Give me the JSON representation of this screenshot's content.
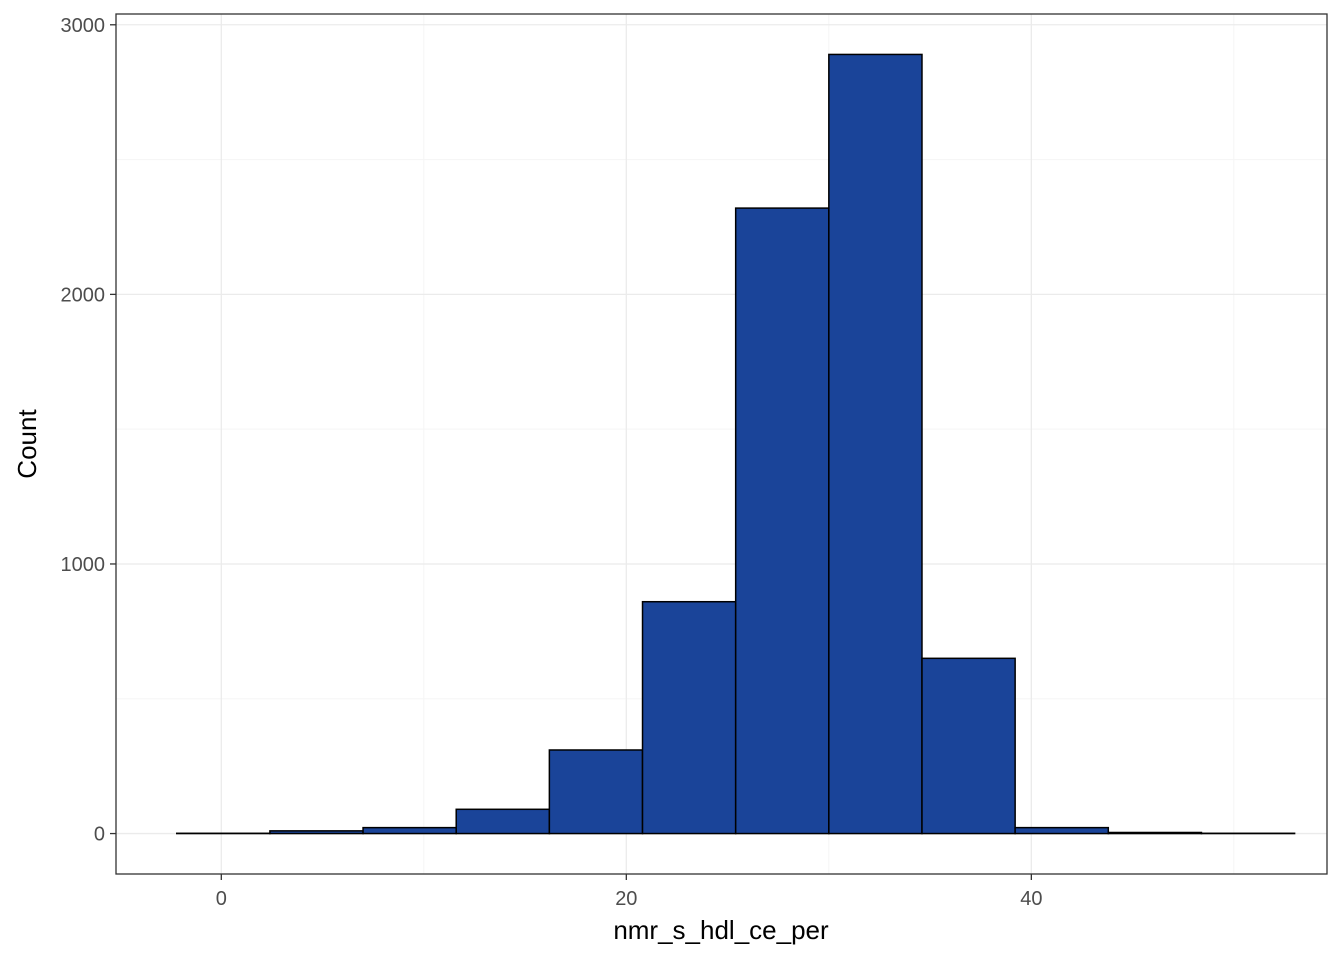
{
  "chart_data": {
    "type": "bar",
    "subtype": "histogram",
    "title": "",
    "xlabel": "nmr_s_hdl_ce_per",
    "ylabel": "Count",
    "xlim": [
      -5.2,
      54.6
    ],
    "ylim": [
      -150,
      3040
    ],
    "x_ticks": [
      0,
      20,
      40
    ],
    "y_ticks": [
      0,
      1000,
      2000,
      3000
    ],
    "x_tick_labels": [
      "0",
      "20",
      "40"
    ],
    "y_tick_labels": [
      "0",
      "1000",
      "2000",
      "3000"
    ],
    "grid": true,
    "bin_edges": [
      -2.2,
      2.4,
      7.0,
      11.6,
      16.2,
      20.8,
      25.4,
      30.0,
      34.6,
      39.2,
      43.8,
      48.4,
      53.0
    ],
    "values": [
      1,
      10,
      22,
      90,
      310,
      860,
      2320,
      2890,
      650,
      22,
      4,
      1
    ],
    "colors": {
      "bar_fill": "#1a4499",
      "bar_stroke": "#000000",
      "grid_major": "#ebebeb",
      "grid_minor": "#f5f5f5",
      "panel_border": "#333333"
    }
  }
}
